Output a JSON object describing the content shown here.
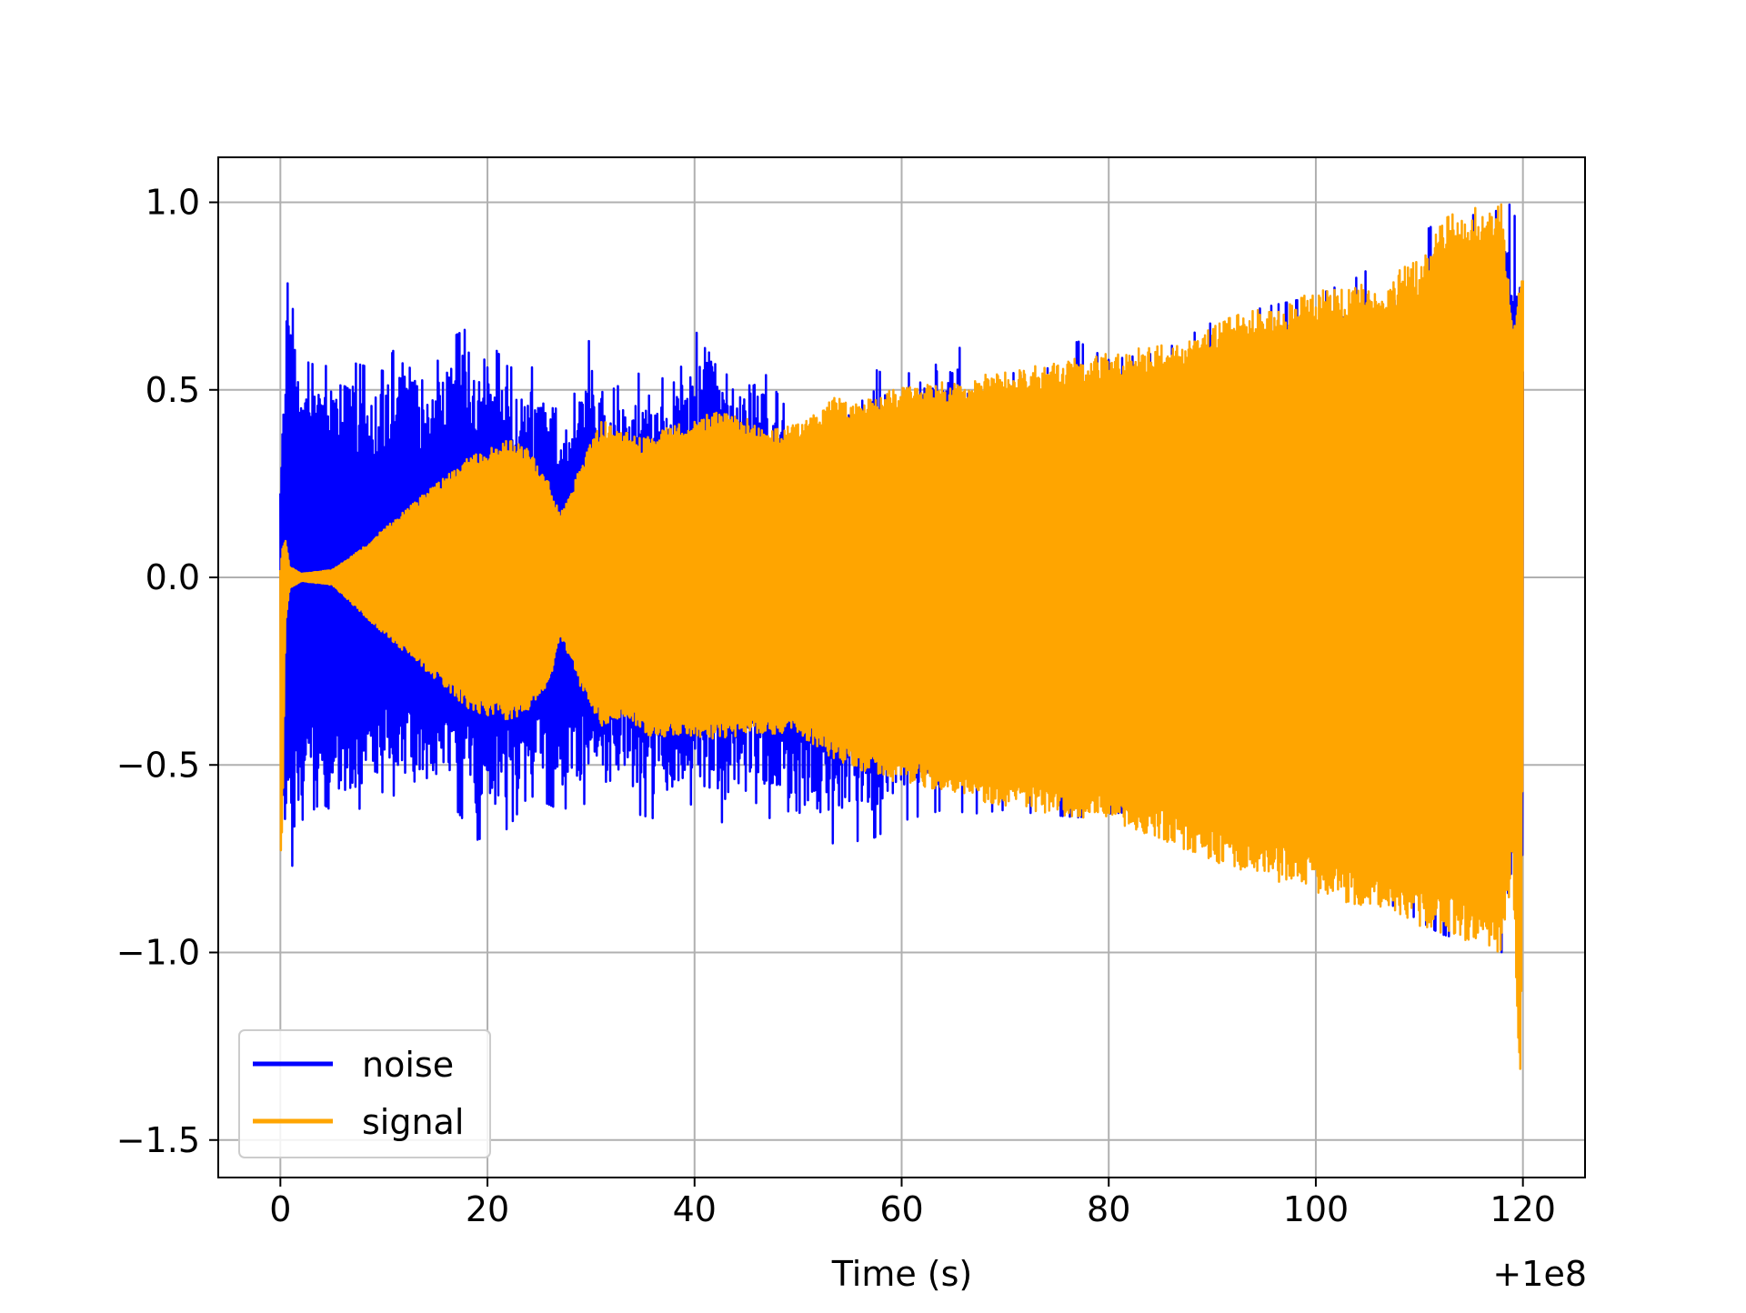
{
  "chart_data": {
    "type": "line",
    "title": "",
    "xlabel": "Time (s)",
    "ylabel": "",
    "x_offset_label": "+1e8",
    "xlim": [
      -6,
      126
    ],
    "ylim": [
      -1.6,
      1.12
    ],
    "xticks": [
      0,
      20,
      40,
      60,
      80,
      100,
      120
    ],
    "xtick_labels": [
      "0",
      "20",
      "40",
      "60",
      "80",
      "100",
      "120"
    ],
    "yticks": [
      -1.5,
      -1.0,
      -0.5,
      0.0,
      0.5,
      1.0
    ],
    "ytick_labels": [
      "−1.5",
      "−1.0",
      "−0.5",
      "0.0",
      "0.5",
      "1.0"
    ],
    "grid": true,
    "legend_position": "lower-left",
    "series": [
      {
        "name": "noise",
        "color": "#0000ff",
        "x_range": [
          0,
          120
        ],
        "upper_envelope": [
          [
            0,
            0.36
          ],
          [
            0.3,
            0.62
          ],
          [
            0.6,
            0.96
          ],
          [
            1,
            0.75
          ],
          [
            2,
            0.58
          ],
          [
            4,
            0.56
          ],
          [
            6,
            0.58
          ],
          [
            10,
            0.55
          ],
          [
            12,
            0.67
          ],
          [
            14,
            0.5
          ],
          [
            16,
            0.63
          ],
          [
            19,
            0.68
          ],
          [
            22,
            0.56
          ],
          [
            25,
            0.56
          ],
          [
            28,
            0.45
          ],
          [
            30,
            0.65
          ],
          [
            32,
            0.5
          ],
          [
            35,
            0.55
          ],
          [
            38,
            0.52
          ],
          [
            41,
            0.7
          ],
          [
            44,
            0.58
          ],
          [
            46,
            0.58
          ],
          [
            50,
            0.4
          ],
          [
            53,
            0.42
          ],
          [
            57,
            0.56
          ],
          [
            60,
            0.52
          ],
          [
            64,
            0.66
          ],
          [
            67,
            0.57
          ],
          [
            70,
            0.55
          ],
          [
            73,
            0.53
          ],
          [
            77,
            0.63
          ],
          [
            80,
            0.58
          ],
          [
            85,
            0.6
          ],
          [
            90,
            0.68
          ],
          [
            95,
            0.72
          ],
          [
            100,
            0.75
          ],
          [
            104,
            0.8
          ],
          [
            108,
            0.88
          ],
          [
            112,
            0.95
          ],
          [
            118,
            0.98
          ],
          [
            119,
            1.0
          ],
          [
            120,
            0.82
          ]
        ],
        "lower_envelope": [
          [
            0,
            -0.6
          ],
          [
            0.3,
            -0.72
          ],
          [
            1,
            -0.79
          ],
          [
            2,
            -0.65
          ],
          [
            4,
            -0.6
          ],
          [
            6,
            -0.65
          ],
          [
            10,
            -0.57
          ],
          [
            14,
            -0.62
          ],
          [
            16,
            -0.58
          ],
          [
            19,
            -0.7
          ],
          [
            22,
            -0.67
          ],
          [
            24,
            -0.58
          ],
          [
            27,
            -0.62
          ],
          [
            30,
            -0.6
          ],
          [
            33,
            -0.62
          ],
          [
            37,
            -0.65
          ],
          [
            40,
            -0.6
          ],
          [
            44,
            -0.68
          ],
          [
            46,
            -0.6
          ],
          [
            49,
            -0.7
          ],
          [
            53,
            -0.71
          ],
          [
            57,
            -0.7
          ],
          [
            60,
            -0.65
          ],
          [
            64,
            -0.62
          ],
          [
            67,
            -0.63
          ],
          [
            70,
            -0.62
          ],
          [
            73,
            -0.63
          ],
          [
            77,
            -0.64
          ],
          [
            80,
            -0.63
          ],
          [
            85,
            -0.62
          ],
          [
            90,
            -0.66
          ],
          [
            95,
            -0.75
          ],
          [
            100,
            -0.8
          ],
          [
            104,
            -0.85
          ],
          [
            108,
            -0.88
          ],
          [
            112,
            -0.95
          ],
          [
            118,
            -1.0
          ],
          [
            120,
            -0.85
          ]
        ]
      },
      {
        "name": "signal",
        "color": "#ffa500",
        "x_range": [
          0,
          120
        ],
        "upper_envelope": [
          [
            0,
            0.02
          ],
          [
            0.2,
            0.08
          ],
          [
            0.5,
            0.1
          ],
          [
            0.9,
            0.03
          ],
          [
            2,
            0.01
          ],
          [
            5,
            0.02
          ],
          [
            8,
            0.08
          ],
          [
            12,
            0.18
          ],
          [
            16,
            0.27
          ],
          [
            18,
            0.32
          ],
          [
            20,
            0.34
          ],
          [
            22,
            0.37
          ],
          [
            24,
            0.34
          ],
          [
            26,
            0.25
          ],
          [
            27,
            0.17
          ],
          [
            28,
            0.22
          ],
          [
            29,
            0.3
          ],
          [
            31,
            0.42
          ],
          [
            33,
            0.39
          ],
          [
            35,
            0.37
          ],
          [
            38,
            0.41
          ],
          [
            42,
            0.44
          ],
          [
            45,
            0.43
          ],
          [
            47,
            0.39
          ],
          [
            50,
            0.41
          ],
          [
            52,
            0.44
          ],
          [
            53,
            0.48
          ],
          [
            56,
            0.47
          ],
          [
            60,
            0.51
          ],
          [
            63,
            0.52
          ],
          [
            65,
            0.52
          ],
          [
            68,
            0.54
          ],
          [
            72,
            0.56
          ],
          [
            76,
            0.58
          ],
          [
            80,
            0.6
          ],
          [
            85,
            0.62
          ],
          [
            88,
            0.63
          ],
          [
            90,
            0.68
          ],
          [
            95,
            0.72
          ],
          [
            100,
            0.76
          ],
          [
            104,
            0.79
          ],
          [
            106,
            0.75
          ],
          [
            108,
            0.82
          ],
          [
            110,
            0.85
          ],
          [
            112,
            0.95
          ],
          [
            114,
            0.98
          ],
          [
            116,
            0.99
          ],
          [
            118,
            1.0
          ],
          [
            119,
            0.7
          ],
          [
            120,
            0.81
          ]
        ],
        "lower_envelope": [
          [
            0,
            -0.8
          ],
          [
            0.2,
            -0.7
          ],
          [
            0.5,
            -0.12
          ],
          [
            0.9,
            -0.03
          ],
          [
            2,
            -0.01
          ],
          [
            5,
            -0.02
          ],
          [
            8,
            -0.1
          ],
          [
            12,
            -0.2
          ],
          [
            16,
            -0.3
          ],
          [
            18,
            -0.35
          ],
          [
            20,
            -0.37
          ],
          [
            22,
            -0.38
          ],
          [
            24,
            -0.36
          ],
          [
            26,
            -0.28
          ],
          [
            27,
            -0.16
          ],
          [
            28,
            -0.22
          ],
          [
            29,
            -0.3
          ],
          [
            31,
            -0.4
          ],
          [
            33,
            -0.37
          ],
          [
            35,
            -0.42
          ],
          [
            38,
            -0.43
          ],
          [
            42,
            -0.43
          ],
          [
            45,
            -0.42
          ],
          [
            47,
            -0.42
          ],
          [
            50,
            -0.42
          ],
          [
            52,
            -0.46
          ],
          [
            53,
            -0.48
          ],
          [
            56,
            -0.52
          ],
          [
            60,
            -0.55
          ],
          [
            63,
            -0.57
          ],
          [
            65,
            -0.58
          ],
          [
            68,
            -0.6
          ],
          [
            72,
            -0.62
          ],
          [
            76,
            -0.64
          ],
          [
            80,
            -0.65
          ],
          [
            85,
            -0.7
          ],
          [
            90,
            -0.76
          ],
          [
            95,
            -0.8
          ],
          [
            100,
            -0.84
          ],
          [
            104,
            -0.88
          ],
          [
            106,
            -0.88
          ],
          [
            108,
            -0.9
          ],
          [
            110,
            -0.93
          ],
          [
            112,
            -0.96
          ],
          [
            114,
            -0.97
          ],
          [
            116,
            -0.99
          ],
          [
            118,
            -1.0
          ],
          [
            119,
            -0.78
          ],
          [
            119.8,
            -1.48
          ],
          [
            120,
            -0.3
          ]
        ]
      }
    ]
  }
}
